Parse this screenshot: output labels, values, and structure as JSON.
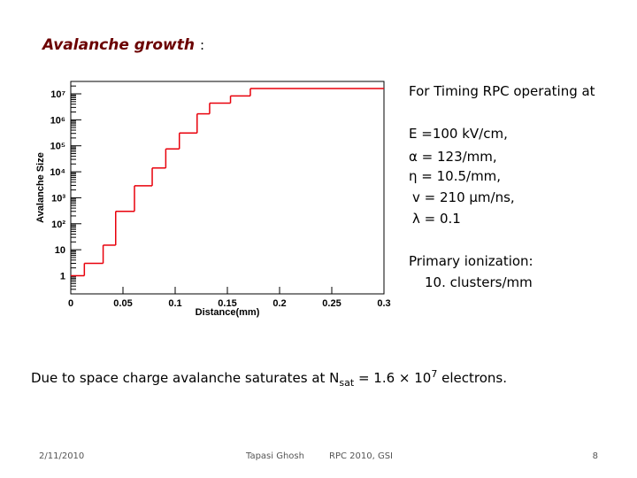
{
  "slide": {
    "title": "Avalanche growth",
    "title_colon": ":",
    "side_notes": [
      "For Timing RPC operating at",
      "E =100 kV/cm,",
      "α = 123/mm,",
      "η = 10.5/mm,",
      "v = 210 µm/ns,",
      "λ = 0.1",
      "Primary ionization:",
      "10. clusters/mm"
    ],
    "conclusion": {
      "before": "Due to space charge avalanche  saturates at N",
      "subscript": "sat",
      "middle": " = 1.6 × 10",
      "superscript": "7",
      "after": " electrons."
    },
    "footer": {
      "date": "2/11/2010",
      "author": "Tapasi Ghosh",
      "event": "RPC 2010, GSI",
      "page": "8"
    }
  },
  "chart_data": {
    "type": "step",
    "x_label": "Distance(mm)",
    "y_label": "Avalanche Size",
    "x": [
      0,
      0.013,
      0.031,
      0.043,
      0.061,
      0.078,
      0.091,
      0.104,
      0.121,
      0.133,
      0.153,
      0.172
    ],
    "values": [
      1,
      3,
      15,
      300,
      2900,
      14000,
      76000,
      310000,
      1700000,
      4400000,
      8300000,
      16000000
    ],
    "color": "#e8000b",
    "xlim": [
      0,
      0.3
    ],
    "xticks": [
      0,
      0.05,
      0.1,
      0.15,
      0.2,
      0.25,
      0.3
    ],
    "ylim": [
      0.2,
      30000000
    ],
    "yticks": [
      1,
      10,
      {
        "value": 100,
        "label": "10²"
      },
      {
        "value": 1000,
        "label": "10³"
      },
      {
        "value": 10000,
        "label": "10⁴"
      },
      {
        "value": 100000,
        "label": "10⁵"
      },
      {
        "value": 1000000,
        "label": "10⁶"
      },
      {
        "value": 10000000,
        "label": "10⁷"
      }
    ],
    "log_y": true
  }
}
